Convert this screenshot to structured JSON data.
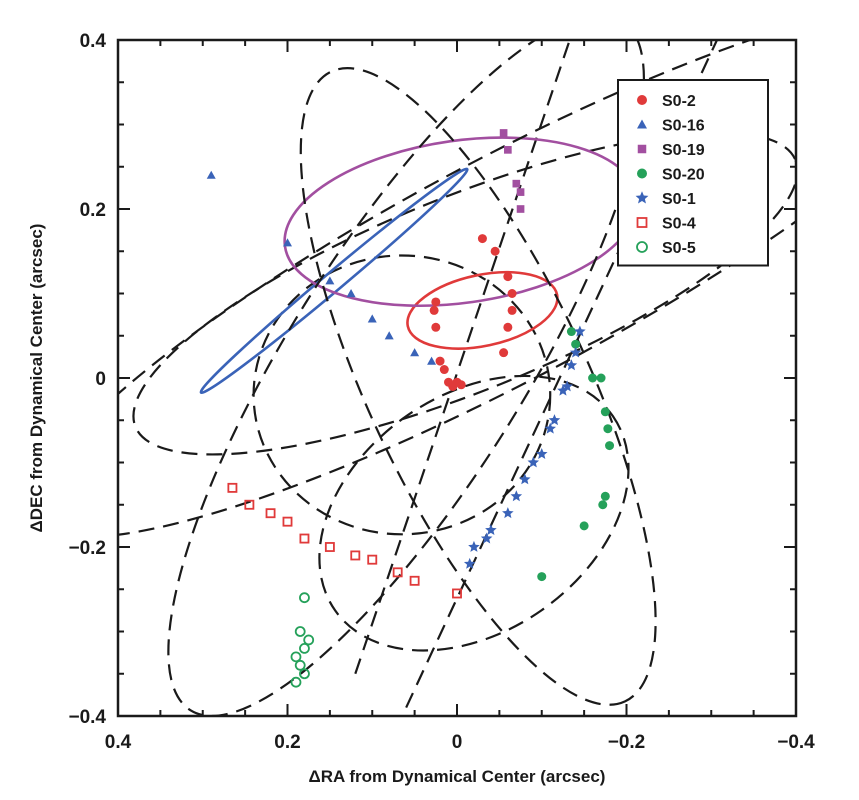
{
  "chart_data": {
    "type": "scatter",
    "xlabel": "ΔRA from Dynamical Center (arcsec)",
    "ylabel": "ΔDEC from Dynamical Center (arcsec)",
    "xlim": [
      0.4,
      -0.4
    ],
    "ylim": [
      -0.4,
      0.4
    ],
    "x_ticks": [
      0.4,
      0.2,
      0,
      -0.2,
      -0.4
    ],
    "x_tick_labels": [
      "0.4",
      "0.2",
      "0",
      "−0.2",
      "−0.4"
    ],
    "y_ticks": [
      -0.4,
      -0.2,
      0,
      0.2,
      0.4
    ],
    "y_tick_labels": [
      "−0.4",
      "−0.2",
      "0",
      "0.2",
      "0.4"
    ],
    "grid": false,
    "legend_position": "top-right",
    "series": [
      {
        "name": "S0-2",
        "color": "#e03a3a",
        "marker": "filled-circle",
        "orbit": {
          "cx": -0.03,
          "cy": 0.08,
          "a": 0.09,
          "b": 0.042,
          "rot": -12,
          "dash": false
        },
        "points": [
          [
            0.005,
            -0.01
          ],
          [
            0.0,
            -0.005
          ],
          [
            -0.005,
            -0.008
          ],
          [
            0.01,
            -0.005
          ],
          [
            0.015,
            0.01
          ],
          [
            0.02,
            0.02
          ],
          [
            0.025,
            0.06
          ],
          [
            0.027,
            0.08
          ],
          [
            0.025,
            0.09
          ],
          [
            -0.03,
            0.165
          ],
          [
            -0.045,
            0.15
          ],
          [
            -0.06,
            0.12
          ],
          [
            -0.065,
            0.1
          ],
          [
            -0.065,
            0.08
          ],
          [
            -0.06,
            0.06
          ],
          [
            -0.055,
            0.03
          ]
        ]
      },
      {
        "name": "S0-16",
        "color": "#3a63b8",
        "marker": "filled-triangle",
        "orbit": {
          "cx": 0.145,
          "cy": 0.115,
          "a": 0.205,
          "b": 0.011,
          "rot": -40,
          "dash": false
        },
        "points": [
          [
            0.29,
            0.24
          ],
          [
            0.2,
            0.16
          ],
          [
            0.15,
            0.115
          ],
          [
            0.125,
            0.1
          ],
          [
            0.1,
            0.07
          ],
          [
            0.08,
            0.05
          ],
          [
            0.05,
            0.03
          ],
          [
            0.03,
            0.02
          ]
        ]
      },
      {
        "name": "S0-19",
        "color": "#a24fa0",
        "marker": "filled-square",
        "orbit": {
          "cx": -0.005,
          "cy": 0.185,
          "a": 0.21,
          "b": 0.096,
          "rot": -8,
          "dash": false
        },
        "points": [
          [
            -0.055,
            0.29
          ],
          [
            -0.06,
            0.27
          ],
          [
            -0.07,
            0.23
          ],
          [
            -0.075,
            0.22
          ],
          [
            -0.075,
            0.2
          ]
        ]
      },
      {
        "name": "S0-20",
        "color": "#25a15a",
        "marker": "filled-circle",
        "orbit": {
          "cx": -0.02,
          "cy": -0.16,
          "a": 0.2,
          "b": 0.14,
          "rot": -35,
          "dash": true
        },
        "points": [
          [
            -0.135,
            0.055
          ],
          [
            -0.14,
            0.04
          ],
          [
            -0.16,
            0.0
          ],
          [
            -0.17,
            0.0
          ],
          [
            -0.175,
            -0.04
          ],
          [
            -0.178,
            -0.06
          ],
          [
            -0.18,
            -0.08
          ],
          [
            -0.175,
            -0.14
          ],
          [
            -0.172,
            -0.15
          ],
          [
            -0.15,
            -0.175
          ],
          [
            -0.1,
            -0.235
          ]
        ]
      },
      {
        "name": "S0-1",
        "color": "#3a63b8",
        "marker": "filled-star",
        "orbit": {
          "cx": 0.06,
          "cy": 0.015,
          "a": 0.48,
          "b": 0.14,
          "rot": -58,
          "dash": true
        },
        "points": [
          [
            -0.145,
            0.055
          ],
          [
            -0.14,
            0.03
          ],
          [
            -0.135,
            0.015
          ],
          [
            -0.13,
            -0.01
          ],
          [
            -0.125,
            -0.015
          ],
          [
            -0.115,
            -0.05
          ],
          [
            -0.11,
            -0.06
          ],
          [
            -0.1,
            -0.09
          ],
          [
            -0.09,
            -0.1
          ],
          [
            -0.08,
            -0.12
          ],
          [
            -0.07,
            -0.14
          ],
          [
            -0.06,
            -0.16
          ],
          [
            -0.04,
            -0.18
          ],
          [
            -0.035,
            -0.19
          ],
          [
            -0.02,
            -0.2
          ],
          [
            -0.015,
            -0.22
          ]
        ]
      },
      {
        "name": "S0-4",
        "color": "#e03a3a",
        "marker": "open-square",
        "orbit": {
          "cx": -0.06,
          "cy": 0.13,
          "a": 0.63,
          "b": 0.13,
          "rot": -28,
          "dash": true
        },
        "points": [
          [
            0.265,
            -0.13
          ],
          [
            0.245,
            -0.15
          ],
          [
            0.22,
            -0.16
          ],
          [
            0.2,
            -0.17
          ],
          [
            0.18,
            -0.19
          ],
          [
            0.15,
            -0.2
          ],
          [
            0.12,
            -0.21
          ],
          [
            0.1,
            -0.215
          ],
          [
            0.07,
            -0.23
          ],
          [
            0.05,
            -0.24
          ],
          [
            0.0,
            -0.255
          ]
        ]
      },
      {
        "name": "S0-5",
        "color": "#25a15a",
        "marker": "open-circle",
        "orbit": {
          "cx": -0.025,
          "cy": -0.01,
          "a": 0.41,
          "b": 0.13,
          "rot": 65,
          "dash": true
        },
        "points": [
          [
            0.18,
            -0.26
          ],
          [
            0.185,
            -0.3
          ],
          [
            0.18,
            -0.32
          ],
          [
            0.19,
            -0.33
          ],
          [
            0.185,
            -0.34
          ],
          [
            0.18,
            -0.35
          ],
          [
            0.19,
            -0.36
          ],
          [
            0.175,
            -0.31
          ]
        ]
      }
    ],
    "extra_curves": [
      {
        "type": "ellipse",
        "cx": 0.065,
        "cy": -0.02,
        "a": 0.175,
        "b": 0.165,
        "rot": 0,
        "dash": true
      },
      {
        "type": "ellipse",
        "cx": -0.01,
        "cy": 0.1,
        "a": 0.42,
        "b": 0.115,
        "rot": -22,
        "dash": true
      },
      {
        "type": "line",
        "from": [
          0.12,
          -0.35
        ],
        "to": [
          -0.16,
          0.48
        ],
        "dash": true
      },
      {
        "type": "line",
        "from": [
          0.06,
          -0.39
        ],
        "to": [
          -0.33,
          0.45
        ],
        "dash": true
      }
    ]
  }
}
